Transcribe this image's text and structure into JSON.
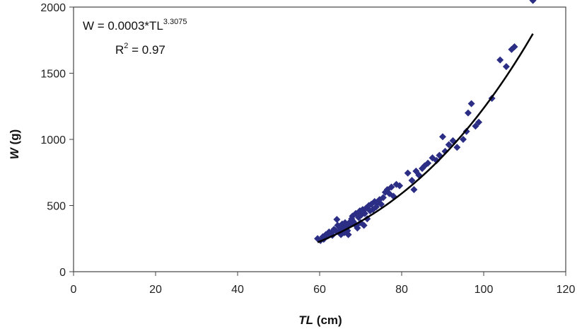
{
  "chart_data": {
    "type": "scatter",
    "xlabel": {
      "var": "TL",
      "unit": " (cm)"
    },
    "ylabel": {
      "var": "W",
      "unit": " (g)"
    },
    "xlim": [
      0,
      120
    ],
    "ylim": [
      0,
      2000
    ],
    "xticks": [
      0,
      20,
      40,
      60,
      80,
      100,
      120
    ],
    "yticks": [
      0,
      500,
      1000,
      1500,
      2000
    ],
    "grid": false,
    "legend": "none",
    "annotations": {
      "equation": "W = 0.0003*TL",
      "exponent": "3.3075",
      "r2_prefix": "R",
      "r2_sup": "2",
      "r2_value": " = 0.97"
    },
    "fit": {
      "a": 0.0003,
      "b": 3.3075,
      "x_range": [
        59.5,
        112
      ]
    },
    "colors": {
      "marker": "#2b2e84",
      "fit_line": "#000000",
      "axis": "#444444"
    },
    "series": [
      {
        "x": [
          59.5,
          60.2,
          60.8,
          61.0,
          61.5,
          62.0,
          62.3,
          62.8,
          63.1,
          63.5,
          63.9,
          64.2,
          64.4,
          64.7,
          65.0,
          65.2,
          65.5,
          65.8,
          66.0,
          66.2,
          66.5,
          66.8,
          67.0,
          67.2,
          67.5,
          67.8,
          68.0,
          68.2,
          68.5,
          68.8,
          69.0,
          69.2,
          69.5,
          69.8,
          70.0,
          70.2,
          70.5,
          70.8,
          71.0,
          71.3,
          71.6,
          72.0,
          72.3,
          72.6,
          73.0,
          73.4,
          73.8,
          74.2,
          74.6,
          75.0,
          75.5,
          76.0,
          76.5,
          77.0,
          77.5,
          78.0,
          78.7,
          79.5,
          81.5,
          82.5,
          83.0,
          83.5,
          84.2,
          85.0,
          85.6,
          86.4,
          87.5,
          88.5,
          89.2,
          90.0,
          90.6,
          91.5,
          92.5,
          93.5,
          95.0,
          95.8,
          96.2,
          97.0,
          98.0,
          98.8,
          102.0,
          104.0,
          105.5,
          106.8,
          107.5,
          112.0
        ],
        "y": [
          250,
          235,
          265,
          245,
          280,
          270,
          300,
          290,
          275,
          320,
          310,
          395,
          350,
          300,
          330,
          280,
          360,
          320,
          295,
          370,
          340,
          310,
          280,
          350,
          380,
          400,
          420,
          380,
          360,
          440,
          350,
          330,
          410,
          460,
          370,
          430,
          470,
          350,
          440,
          480,
          400,
          500,
          460,
          510,
          470,
          530,
          490,
          520,
          545,
          510,
          560,
          600,
          620,
          590,
          640,
          570,
          660,
          650,
          745,
          690,
          620,
          760,
          730,
          780,
          800,
          820,
          860,
          840,
          880,
          1020,
          910,
          960,
          990,
          940,
          1000,
          1060,
          1200,
          1270,
          1100,
          1130,
          1310,
          1600,
          1550,
          1680,
          1700,
          2050
        ]
      }
    ]
  }
}
